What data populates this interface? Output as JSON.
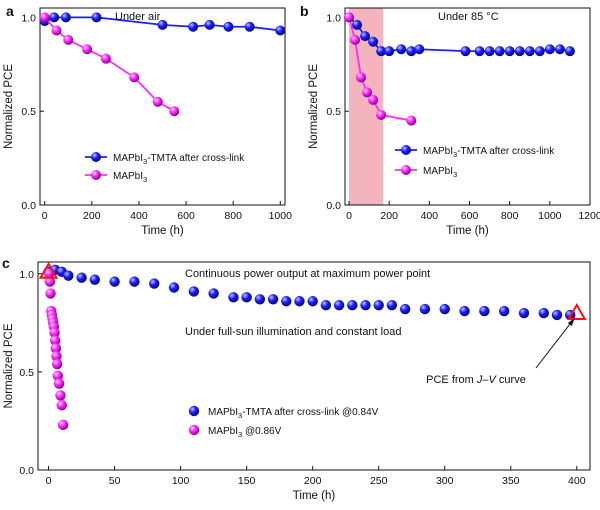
{
  "colors": {
    "blue": "#1e1eff",
    "magenta": "#ff2bff",
    "shade": "#f4b4be",
    "triangle": "#ff1010",
    "axis": "#111111"
  },
  "chart_data": [
    {
      "type": "line",
      "panel": "a",
      "annotation": "Under air",
      "xlabel": "Time (h)",
      "ylabel": "Normalized PCE",
      "xlim": [
        -20,
        1020
      ],
      "ylim": [
        0.0,
        1.05
      ],
      "xticks": [
        0,
        200,
        400,
        600,
        800,
        1000
      ],
      "yticks": [
        0.0,
        0.5,
        1.0
      ],
      "ytick_labels": [
        "0.0",
        "0.5",
        "1.0"
      ],
      "legend_position": "lower-left",
      "series": [
        {
          "name": "MAPbI3-TMTA after cross-link",
          "legend_main": "MAPbI",
          "legend_sub": "3",
          "legend_rest": "-TMTA after cross-link",
          "color": "blue",
          "x": [
            0,
            40,
            90,
            220,
            500,
            630,
            700,
            780,
            870,
            1000
          ],
          "y": [
            0.98,
            1.0,
            1.0,
            1.0,
            0.96,
            0.95,
            0.96,
            0.95,
            0.95,
            0.93
          ]
        },
        {
          "name": "MAPbI3",
          "legend_main": "MAPbI",
          "legend_sub": "3",
          "legend_rest": "",
          "color": "magenta",
          "x": [
            0,
            50,
            100,
            180,
            260,
            380,
            480,
            550
          ],
          "y": [
            1.0,
            0.93,
            0.88,
            0.83,
            0.78,
            0.68,
            0.55,
            0.5
          ]
        }
      ]
    },
    {
      "type": "line",
      "panel": "b",
      "annotation": "Under 85 °C",
      "xlabel": "Time (h)",
      "ylabel": "Normalized PCE",
      "xlim": [
        -20,
        1200
      ],
      "ylim": [
        0.0,
        1.05
      ],
      "xticks": [
        0,
        200,
        400,
        600,
        800,
        1000,
        1200
      ],
      "yticks": [
        0.0,
        0.5,
        1.0
      ],
      "ytick_labels": [
        "0.0",
        "0.5",
        "1.0"
      ],
      "shaded_region_x": [
        0,
        170
      ],
      "legend_position": "lower-left",
      "series": [
        {
          "name": "MAPbI3-TMTA after cross-link",
          "legend_main": "MAPbI",
          "legend_sub": "3",
          "legend_rest": "-TMTA after cross-link",
          "color": "blue",
          "x": [
            0,
            40,
            80,
            120,
            160,
            200,
            260,
            310,
            350,
            580,
            650,
            700,
            750,
            800,
            850,
            900,
            950,
            1000,
            1050,
            1100
          ],
          "y": [
            1.0,
            0.96,
            0.9,
            0.87,
            0.82,
            0.82,
            0.83,
            0.82,
            0.83,
            0.82,
            0.82,
            0.82,
            0.82,
            0.82,
            0.82,
            0.82,
            0.82,
            0.83,
            0.83,
            0.82
          ]
        },
        {
          "name": "MAPbI3",
          "legend_main": "MAPbI",
          "legend_sub": "3",
          "legend_rest": "",
          "color": "magenta",
          "x": [
            0,
            30,
            60,
            90,
            120,
            160,
            310
          ],
          "y": [
            1.0,
            0.88,
            0.68,
            0.6,
            0.56,
            0.48,
            0.45
          ]
        }
      ]
    },
    {
      "type": "scatter",
      "panel": "c",
      "xlabel": "Time (h)",
      "ylabel": "Normalized PCE",
      "xlim": [
        -8,
        410
      ],
      "ylim": [
        0.0,
        1.06
      ],
      "xticks": [
        0,
        50,
        100,
        150,
        200,
        250,
        300,
        350,
        400
      ],
      "yticks": [
        0.0,
        0.5,
        1.0
      ],
      "ytick_labels": [
        "0.0",
        "0.5",
        "1.0"
      ],
      "annotations": [
        "Continuous power output at maximum power point",
        "Under full-sun illumination and constant load"
      ],
      "jv_label_prefix": "PCE from ",
      "jv_label_italic": "J–V",
      "jv_label_suffix": " curve",
      "triangle_markers": [
        {
          "x": 0,
          "y": 1.01
        },
        {
          "x": 400,
          "y": 0.8
        }
      ],
      "legend_position": "lower-left",
      "series": [
        {
          "name": "MAPbI3-TMTA after cross-link @0.84V",
          "legend_main": "MAPbI",
          "legend_sub": "3",
          "legend_rest": "-TMTA after cross-link @0.84V",
          "color": "blue",
          "x": [
            0,
            5,
            10,
            15,
            25,
            35,
            50,
            65,
            80,
            95,
            110,
            125,
            140,
            150,
            160,
            170,
            180,
            190,
            200,
            210,
            220,
            230,
            240,
            250,
            260,
            270,
            285,
            300,
            315,
            330,
            345,
            360,
            375,
            385,
            395
          ],
          "y": [
            1.01,
            1.02,
            1.01,
            0.99,
            0.98,
            0.97,
            0.96,
            0.96,
            0.95,
            0.93,
            0.91,
            0.9,
            0.88,
            0.88,
            0.87,
            0.87,
            0.86,
            0.86,
            0.86,
            0.84,
            0.84,
            0.84,
            0.84,
            0.84,
            0.84,
            0.82,
            0.82,
            0.82,
            0.81,
            0.81,
            0.81,
            0.8,
            0.8,
            0.79,
            0.79
          ]
        },
        {
          "name": "MAPbI3 @0.86V",
          "legend_main": "MAPbI",
          "legend_sub": "3",
          "legend_rest": " @0.86V",
          "color": "magenta",
          "x": [
            0.5,
            1.0,
            1.5,
            2.0,
            2.5,
            3.0,
            3.5,
            4.0,
            4.5,
            5.0,
            5.5,
            6.0,
            6.5,
            7.0,
            8.0,
            9.0,
            10.0,
            11.0
          ],
          "y": [
            1.0,
            0.96,
            0.9,
            0.81,
            0.79,
            0.77,
            0.75,
            0.73,
            0.7,
            0.66,
            0.62,
            0.58,
            0.54,
            0.48,
            0.44,
            0.38,
            0.33,
            0.23
          ]
        }
      ]
    }
  ]
}
